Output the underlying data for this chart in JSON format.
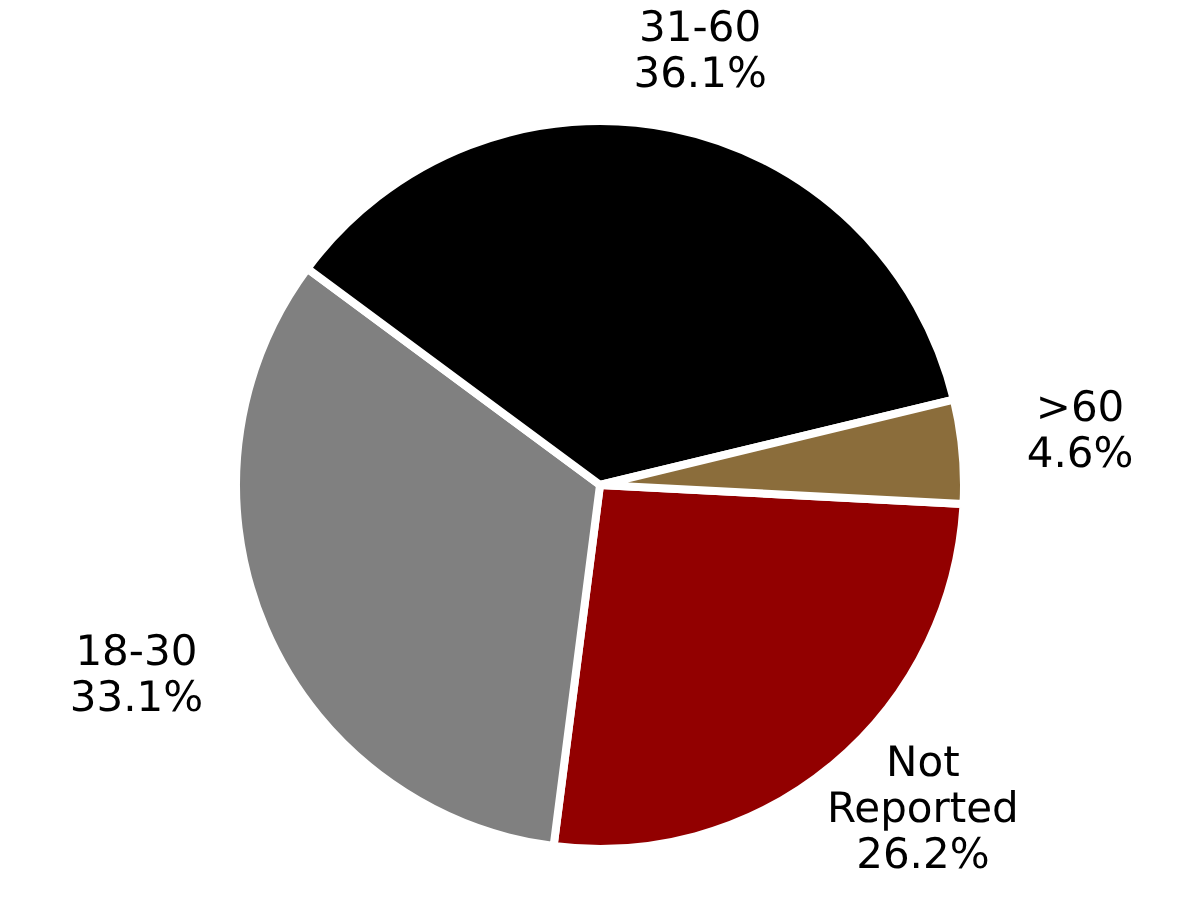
{
  "chart_data": {
    "type": "pie",
    "categories": [
      "Not Reported",
      "18-30",
      "31-60",
      ">60"
    ],
    "values": [
      26.2,
      33.1,
      36.1,
      4.6
    ],
    "value_labels": [
      "26.2%",
      "33.1%",
      "36.1%",
      "4.6%"
    ],
    "colors": [
      "#920000",
      "#808080",
      "#000000",
      "#8b6d3b"
    ]
  }
}
